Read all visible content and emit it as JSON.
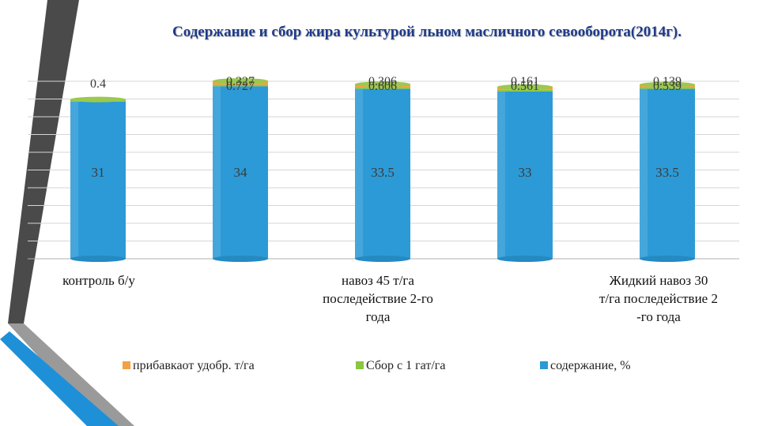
{
  "title": "Содержание и сбор жира культурой льном масличного севооборота(2014г).",
  "colors": {
    "series_prib": "#f5a043",
    "series_sbor": "#8cc63f",
    "series_sod": "#2c9ad6",
    "deco_dark": "#4a4a4a",
    "deco_light": "#9a9a9a",
    "deco_blue": "#1e90d8"
  },
  "chart_data": {
    "type": "bar",
    "stacked": true,
    "categories": [
      "контроль б/у",
      "",
      "навоз 45 т/га последействие 2-го года",
      "",
      "Жидкий навоз 30 т/га последействие 2 -го года"
    ],
    "category_lines": [
      [
        "контроль б/у"
      ],
      [],
      [
        "навоз 45 т/га",
        "последействие 2-го",
        "года"
      ],
      [],
      [
        "Жидкий навоз 30",
        "т/га последействие 2",
        "-го года"
      ]
    ],
    "series": [
      {
        "name": "содержание, %",
        "values": [
          31,
          34,
          33.5,
          33,
          33.5
        ],
        "labels": [
          "31",
          "34",
          "33.5",
          "33",
          "33.5"
        ]
      },
      {
        "name": "Сбор с 1 гат/га",
        "values": [
          0.4,
          0.327,
          0.306,
          0.161,
          0.139
        ],
        "labels": [
          "0.4",
          "0.327",
          "0.306",
          "0.161",
          "0.139"
        ]
      },
      {
        "name": "прибавкаот удобр. т/га",
        "values": [
          0,
          0.727,
          0.606,
          0.561,
          0.539
        ],
        "labels": [
          "",
          "0.727",
          "0.606",
          "0.561",
          "0.539"
        ]
      }
    ],
    "legend_order": [
      "прибавкаот удобр. т/га",
      "Сбор с 1 гат/га",
      "содержание, %"
    ],
    "legend_position": "bottom",
    "grid": true,
    "ylim": [
      0,
      35
    ]
  }
}
